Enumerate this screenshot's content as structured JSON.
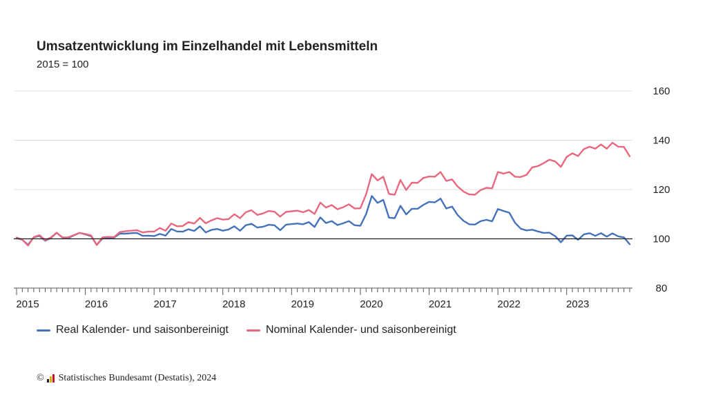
{
  "header": {
    "title": "Umsatzentwicklung im Einzelhandel mit Lebensmitteln",
    "subtitle": "2015 = 100"
  },
  "footer": {
    "copyright_symbol": "©",
    "source": "Statistisches Bundesamt (Destatis), 2024"
  },
  "chart_data": {
    "type": "line",
    "title": "Umsatzentwicklung im Einzelhandel mit Lebensmitteln",
    "subtitle": "2015 = 100",
    "x": [
      "2015-01",
      "2015-02",
      "2015-03",
      "2015-04",
      "2015-05",
      "2015-06",
      "2015-07",
      "2015-08",
      "2015-09",
      "2015-10",
      "2015-11",
      "2015-12",
      "2016-01",
      "2016-02",
      "2016-03",
      "2016-04",
      "2016-05",
      "2016-06",
      "2016-07",
      "2016-08",
      "2016-09",
      "2016-10",
      "2016-11",
      "2016-12",
      "2017-01",
      "2017-02",
      "2017-03",
      "2017-04",
      "2017-05",
      "2017-06",
      "2017-07",
      "2017-08",
      "2017-09",
      "2017-10",
      "2017-11",
      "2017-12",
      "2018-01",
      "2018-02",
      "2018-03",
      "2018-04",
      "2018-05",
      "2018-06",
      "2018-07",
      "2018-08",
      "2018-09",
      "2018-10",
      "2018-11",
      "2018-12",
      "2019-01",
      "2019-02",
      "2019-03",
      "2019-04",
      "2019-05",
      "2019-06",
      "2019-07",
      "2019-08",
      "2019-09",
      "2019-10",
      "2019-11",
      "2019-12",
      "2020-01",
      "2020-02",
      "2020-03",
      "2020-04",
      "2020-05",
      "2020-06",
      "2020-07",
      "2020-08",
      "2020-09",
      "2020-10",
      "2020-11",
      "2020-12",
      "2021-01",
      "2021-02",
      "2021-03",
      "2021-04",
      "2021-05",
      "2021-06",
      "2021-07",
      "2021-08",
      "2021-09",
      "2021-10",
      "2021-11",
      "2021-12",
      "2022-01",
      "2022-02",
      "2022-03",
      "2022-04",
      "2022-05",
      "2022-06",
      "2022-07",
      "2022-08",
      "2022-09",
      "2022-10",
      "2022-11",
      "2022-12",
      "2023-01",
      "2023-02",
      "2023-03",
      "2023-04",
      "2023-05",
      "2023-06",
      "2023-07",
      "2023-08",
      "2023-09",
      "2023-10",
      "2023-11",
      "2023-12"
    ],
    "x_tick_labels": [
      "2015",
      "2016",
      "2017",
      "2018",
      "2019",
      "2020",
      "2021",
      "2022",
      "2023"
    ],
    "y_ticks": [
      80,
      100,
      120,
      140,
      160
    ],
    "ylim": [
      80,
      160
    ],
    "reference_line": 100,
    "grid": "horizontal",
    "legend_position": "bottom-left",
    "series": [
      {
        "name": "Real Kalender- und saisonbereinigt",
        "color": "#4472b8",
        "values": [
          100.5,
          99.6,
          97.6,
          100.6,
          101.2,
          99.2,
          100.4,
          102.4,
          100.5,
          100.3,
          101.4,
          102.4,
          101.8,
          101.1,
          97.5,
          100.2,
          100.3,
          100.5,
          102.1,
          102.1,
          102.3,
          102.4,
          101.2,
          101.3,
          101.1,
          102.0,
          101.3,
          104.0,
          103.0,
          102.9,
          103.9,
          103.2,
          105.1,
          102.6,
          103.6,
          104.0,
          103.3,
          103.8,
          105.1,
          103.3,
          105.5,
          106.1,
          104.6,
          104.9,
          105.7,
          105.5,
          103.5,
          105.7,
          106.0,
          106.2,
          105.9,
          106.8,
          104.8,
          108.7,
          106.4,
          107.2,
          105.6,
          106.3,
          107.2,
          105.5,
          105.3,
          110.0,
          117.4,
          114.6,
          115.8,
          108.6,
          108.4,
          113.4,
          109.9,
          112.2,
          112.2,
          113.8,
          115.0,
          114.8,
          116.3,
          112.3,
          113.1,
          109.6,
          107.3,
          105.9,
          105.8,
          107.2,
          107.7,
          107.1,
          112.1,
          111.3,
          110.6,
          106.5,
          104.1,
          103.4,
          103.7,
          103.0,
          102.4,
          102.5,
          101.1,
          98.6,
          101.3,
          101.4,
          99.6,
          101.8,
          102.3,
          101.2,
          102.3,
          100.9,
          102.2,
          101.0,
          100.6,
          97.8
        ]
      },
      {
        "name": "Nominal Kalender- und saisonbereinigt",
        "color": "#e8677e",
        "values": [
          100.3,
          99.6,
          97.3,
          100.7,
          101.5,
          99.4,
          100.6,
          102.5,
          100.6,
          100.6,
          101.5,
          102.4,
          102.0,
          101.4,
          97.5,
          100.6,
          100.8,
          100.7,
          102.7,
          103.1,
          103.3,
          103.5,
          102.6,
          102.9,
          102.9,
          104.4,
          103.3,
          106.2,
          105.1,
          105.2,
          106.8,
          106.2,
          108.5,
          106.3,
          107.5,
          108.4,
          107.8,
          108.0,
          110.0,
          108.4,
          110.8,
          111.6,
          109.7,
          110.3,
          111.3,
          111.0,
          109.0,
          110.9,
          111.2,
          111.4,
          110.8,
          111.7,
          110.1,
          114.7,
          112.7,
          113.7,
          112.0,
          112.8,
          114.0,
          112.3,
          112.4,
          118.0,
          126.3,
          123.7,
          125.2,
          118.2,
          117.9,
          123.9,
          119.8,
          122.8,
          122.7,
          124.7,
          125.3,
          125.2,
          127.1,
          123.5,
          124.1,
          121.2,
          119.2,
          118.0,
          117.9,
          119.8,
          120.7,
          120.5,
          127.1,
          126.5,
          127.1,
          125.2,
          125.1,
          126.0,
          129.0,
          129.5,
          130.7,
          132.1,
          131.4,
          129.2,
          133.2,
          134.7,
          133.6,
          136.4,
          137.4,
          136.6,
          138.3,
          136.6,
          139.0,
          137.4,
          137.3,
          133.5
        ]
      }
    ]
  }
}
